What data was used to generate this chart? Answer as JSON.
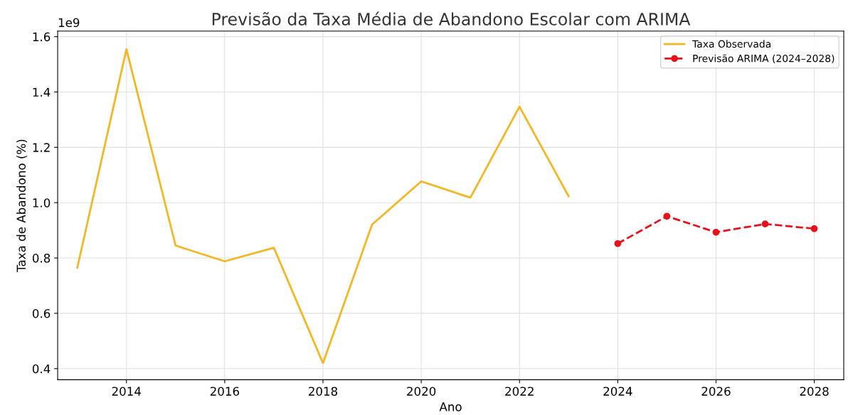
{
  "chart_data": {
    "type": "line",
    "title": "Previsão da Taxa Média de Abandono Escolar com ARIMA",
    "xlabel": "Ano",
    "ylabel": "Taxa de Abandono (%)",
    "series": [
      {
        "name": "Taxa Observada",
        "color": "#f4b622",
        "x": [
          2013,
          2014,
          2015,
          2016,
          2017,
          2018,
          2019,
          2020,
          2021,
          2022,
          2023
        ],
        "values": [
          0.765,
          1.555,
          0.845,
          0.788,
          0.837,
          0.42,
          0.921,
          1.077,
          1.018,
          1.347,
          1.023
        ],
        "marker": "none",
        "line_style": "solid"
      },
      {
        "name": "Previsão ARIMA (2024–2028)",
        "color": "#e8111b",
        "x": [
          2024,
          2025,
          2026,
          2027,
          2028
        ],
        "values": [
          0.852,
          0.951,
          0.893,
          0.923,
          0.906
        ],
        "marker": "circle",
        "line_style": "dashed"
      }
    ],
    "xlim": [
      2012.6,
      2028.6
    ],
    "xticks": [
      2014,
      2016,
      2018,
      2020,
      2022,
      2024,
      2026,
      2028
    ],
    "ylim": [
      0.36,
      1.62
    ],
    "yticks": [
      0.4,
      0.6,
      0.8,
      {
        "value": 1,
        "label": "1.0"
      },
      1.2,
      1.4,
      1.6
    ],
    "annotations": [
      "1e9"
    ],
    "grid": true,
    "legend": "top right"
  }
}
